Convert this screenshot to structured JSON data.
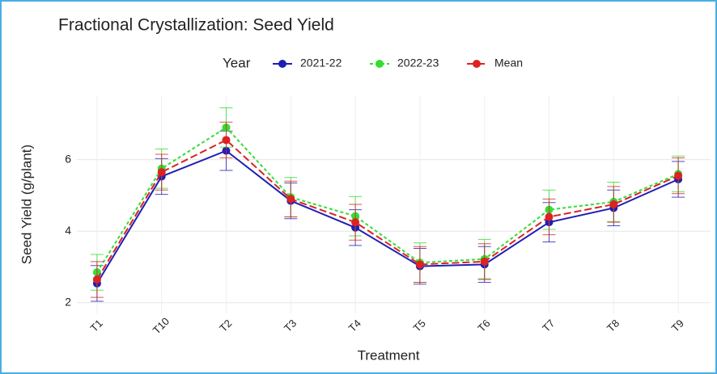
{
  "chart_data": {
    "type": "line",
    "title": "Fractional Crystallization: Seed Yield",
    "x_label": "Treatment",
    "y_label": "Seed Yield (g/plant)",
    "legend_title": "Year",
    "legend": "top",
    "grid": true,
    "categories": [
      "T1",
      "T10",
      "T2",
      "T3",
      "T4",
      "T5",
      "T6",
      "T7",
      "T8",
      "T9"
    ],
    "ylim": [
      1.7,
      7.8
    ],
    "yticks": [
      2,
      4,
      6
    ],
    "series": [
      {
        "name": "2021-22",
        "color": "#1f1fb4",
        "linestyle": "solid",
        "values": [
          2.54,
          5.53,
          6.25,
          4.85,
          4.1,
          3.02,
          3.07,
          4.25,
          4.65,
          5.45
        ],
        "errors": [
          0.5,
          0.5,
          0.55,
          0.5,
          0.5,
          0.5,
          0.5,
          0.55,
          0.5,
          0.5
        ]
      },
      {
        "name": "2022-23",
        "color": "#33dd33",
        "linestyle": "dotted",
        "values": [
          2.85,
          5.75,
          6.9,
          4.95,
          4.42,
          3.12,
          3.22,
          4.6,
          4.82,
          5.6
        ],
        "errors": [
          0.5,
          0.55,
          0.55,
          0.55,
          0.55,
          0.55,
          0.55,
          0.55,
          0.55,
          0.5
        ]
      },
      {
        "name": "Mean",
        "color": "#dd2222",
        "linestyle": "dashed",
        "values": [
          2.65,
          5.65,
          6.55,
          4.9,
          4.25,
          3.07,
          3.15,
          4.4,
          4.75,
          5.55
        ],
        "errors": [
          0.5,
          0.5,
          0.5,
          0.5,
          0.5,
          0.5,
          0.5,
          0.5,
          0.5,
          0.5
        ]
      }
    ]
  }
}
